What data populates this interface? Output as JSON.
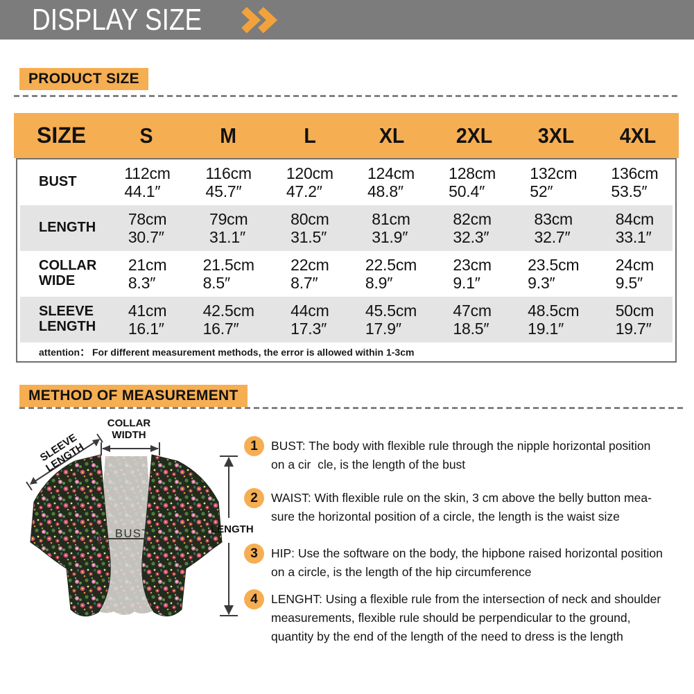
{
  "header": {
    "title": "DISPLAY SIZE"
  },
  "product_size": {
    "label": "PRODUCT SIZE"
  },
  "size_table": {
    "columns": [
      "SIZE",
      "S",
      "M",
      "L",
      "XL",
      "2XL",
      "3XL",
      "4XL"
    ],
    "rows": [
      {
        "label": "BUST",
        "cells": [
          [
            "112cm",
            "44.1″"
          ],
          [
            "116cm",
            "45.7″"
          ],
          [
            "120cm",
            "47.2″"
          ],
          [
            "124cm",
            "48.8″"
          ],
          [
            "128cm",
            "50.4″"
          ],
          [
            "132cm",
            "52″"
          ],
          [
            "136cm",
            "53.5″"
          ]
        ]
      },
      {
        "label": "LENGTH",
        "cells": [
          [
            "78cm",
            "30.7″"
          ],
          [
            "79cm",
            "31.1″"
          ],
          [
            "80cm",
            "31.5″"
          ],
          [
            "81cm",
            "31.9″"
          ],
          [
            "82cm",
            "32.3″"
          ],
          [
            "83cm",
            "32.7″"
          ],
          [
            "84cm",
            "33.1″"
          ]
        ]
      },
      {
        "label": "COLLAR\nWIDE",
        "cells": [
          [
            "21cm",
            "8.3″"
          ],
          [
            "21.5cm",
            "8.5″"
          ],
          [
            "22cm",
            "8.7″"
          ],
          [
            "22.5cm",
            "8.9″"
          ],
          [
            "23cm",
            "9.1″"
          ],
          [
            "23.5cm",
            "9.3″"
          ],
          [
            "24cm",
            "9.5″"
          ]
        ]
      },
      {
        "label": "SLEEVE\nLENGTH",
        "cells": [
          [
            "41cm",
            "16.1″"
          ],
          [
            "42.5cm",
            "16.7″"
          ],
          [
            "44cm",
            "17.3″"
          ],
          [
            "45.5cm",
            "17.9″"
          ],
          [
            "47cm",
            "18.5″"
          ],
          [
            "48.5cm",
            "19.1″"
          ],
          [
            "50cm",
            "19.7″"
          ]
        ]
      }
    ],
    "attention": "attention： For different measurement methods, the error is allowed within 1-3cm"
  },
  "method": {
    "label": "METHOD OF MEASUREMENT",
    "diagram": {
      "collar_label": "COLLAR\nWIDTH",
      "sleeve_label": "SLEEVE\nLENGTH",
      "length_label": "LENGTH",
      "bust_label": "BUST"
    },
    "items": [
      {
        "num": "1",
        "text": "BUST: The body with flexible rule through the nipple horizontal position\non a cir  cle, is the length of the bust"
      },
      {
        "num": "2",
        "text": "WAIST: With flexible rule on the skin, 3 cm above the belly button mea-\nsure the horizontal position of a circle, the length is the waist size"
      },
      {
        "num": "3",
        "text": "HIP: Use the software on the body, the hipbone raised horizontal position\non a circle, is the length of the hip circumference"
      },
      {
        "num": "4",
        "text": "LENGHT: Using a flexible rule from the intersection of neck and shoulder\nmeasurements, flexible rule should be perpendicular to the ground,\nquantity by the end of the length of the need to dress is the length"
      }
    ]
  },
  "colors": {
    "accent_orange": "#F6AE52",
    "header_gray": "#7C7C7C",
    "stripe_gray": "#E4E4E4"
  }
}
